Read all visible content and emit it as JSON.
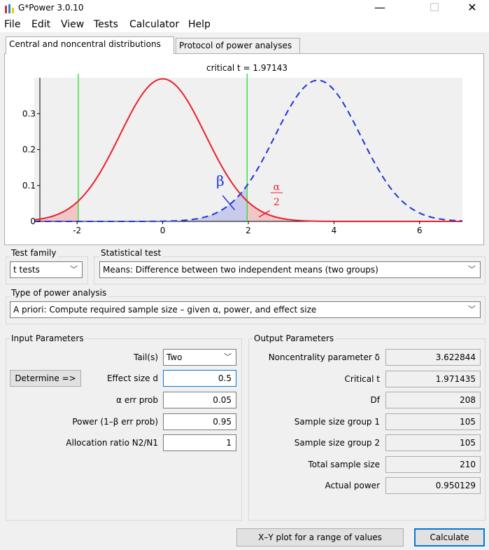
{
  "window": {
    "title": "G*Power 3.0.10",
    "minimize_glyph": "—",
    "maximize_glyph": "☐",
    "close_glyph": "✕"
  },
  "menu": [
    "File",
    "Edit",
    "View",
    "Tests",
    "Calculator",
    "Help"
  ],
  "tabs": [
    {
      "label": "Central and noncentral distributions",
      "active": true
    },
    {
      "label": "Protocol of power analyses",
      "active": false
    }
  ],
  "chart_data": {
    "type": "line",
    "title": "critical t = 1.97143",
    "xlim": [
      -3,
      7
    ],
    "ylim": [
      0,
      0.4
    ],
    "x_ticks": [
      "-2",
      "0",
      "2",
      "4",
      "6"
    ],
    "y_ticks": [
      "0",
      "0.1",
      "0.2",
      "0.3"
    ],
    "critical_t": 1.97143,
    "noncentrality": 3.622844,
    "df": 208,
    "series": [
      {
        "values": "central t distribution (df=208)",
        "color": "#e8222a",
        "style": "solid"
      },
      {
        "values": "noncentral t distribution (δ=3.622844)",
        "color": "#1f35d6",
        "style": "dashed"
      }
    ],
    "annotations": {
      "beta": "β",
      "alpha_num": "α",
      "alpha_den": "2"
    },
    "critical_line_color": "#33dd33"
  },
  "test_family": {
    "label": "Test family",
    "value": "t tests"
  },
  "statistical_test": {
    "label": "Statistical test",
    "value": "Means: Difference between two independent means (two groups)"
  },
  "power_analysis": {
    "label": "Type of power analysis",
    "value": "A priori: Compute required sample size – given α, power, and effect size"
  },
  "input": {
    "label": "Input Parameters",
    "tails_label": "Tail(s)",
    "tails_value": "Two",
    "determine_label": "Determine =>",
    "effect_label": "Effect size d",
    "effect_value": "0.5",
    "alpha_label": "α err prob",
    "alpha_value": "0.05",
    "power_label": "Power (1–β err prob)",
    "power_value": "0.95",
    "ratio_label": "Allocation ratio N2/N1",
    "ratio_value": "1"
  },
  "output": {
    "label": "Output Parameters",
    "rows": [
      {
        "label": "Noncentrality parameter δ",
        "value": "3.622844"
      },
      {
        "label": "Critical t",
        "value": "1.971435"
      },
      {
        "label": "Df",
        "value": "208"
      },
      {
        "label": "Sample size group 1",
        "value": "105"
      },
      {
        "label": "Sample size group 2",
        "value": "105"
      },
      {
        "label": "Total sample size",
        "value": "210"
      },
      {
        "label": "Actual power",
        "value": "0.950129"
      }
    ]
  },
  "buttons": {
    "xy_plot": "X–Y plot for a range of values",
    "calculate": "Calculate"
  }
}
